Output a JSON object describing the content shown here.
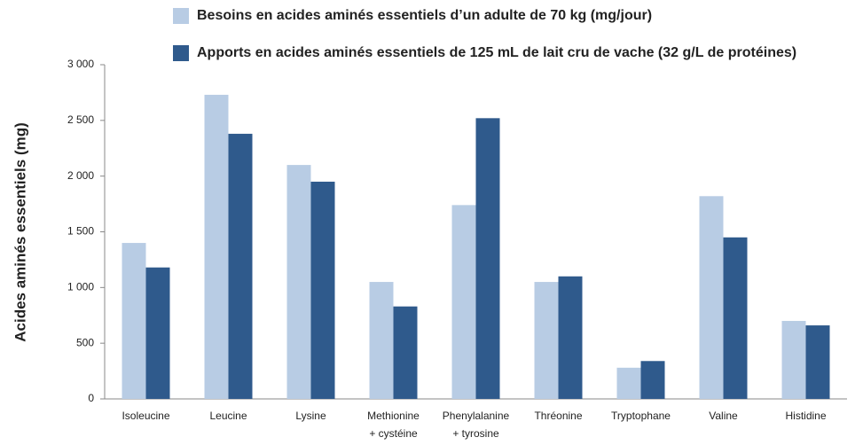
{
  "chart_data": {
    "type": "bar",
    "y_label": "Acides aminés essentiels (mg)",
    "categories": [
      "Isoleucine",
      "Leucine",
      "Lysine",
      "Methionine\n+ cystéine",
      "Phenylalanine\n+ tyrosine",
      "Thréonine",
      "Tryptophane",
      "Valine",
      "Histidine"
    ],
    "series": [
      {
        "name": "Besoins en acides aminés essentiels d’un adulte de 70 kg (mg/jour)",
        "color": "#b8cce4",
        "values": [
          1400,
          2730,
          2100,
          1050,
          1740,
          1050,
          280,
          1820,
          700
        ]
      },
      {
        "name": "Apports en acides aminés essentiels de 125 mL de lait cru de vache (32 g/L de protéines)",
        "color": "#2f5a8c",
        "values": [
          1180,
          2380,
          1950,
          830,
          2520,
          1100,
          340,
          1450,
          660
        ]
      }
    ],
    "ylim": [
      0,
      3000
    ],
    "yticks": [
      0,
      500,
      {
        "value": 1000,
        "label": "1 000"
      },
      {
        "value": 1500,
        "label": "1 500"
      },
      {
        "value": 2000,
        "label": "2 000"
      },
      {
        "value": 2500,
        "label": "2 500"
      },
      {
        "value": 3000,
        "label": "3 000"
      }
    ],
    "grid": false
  }
}
